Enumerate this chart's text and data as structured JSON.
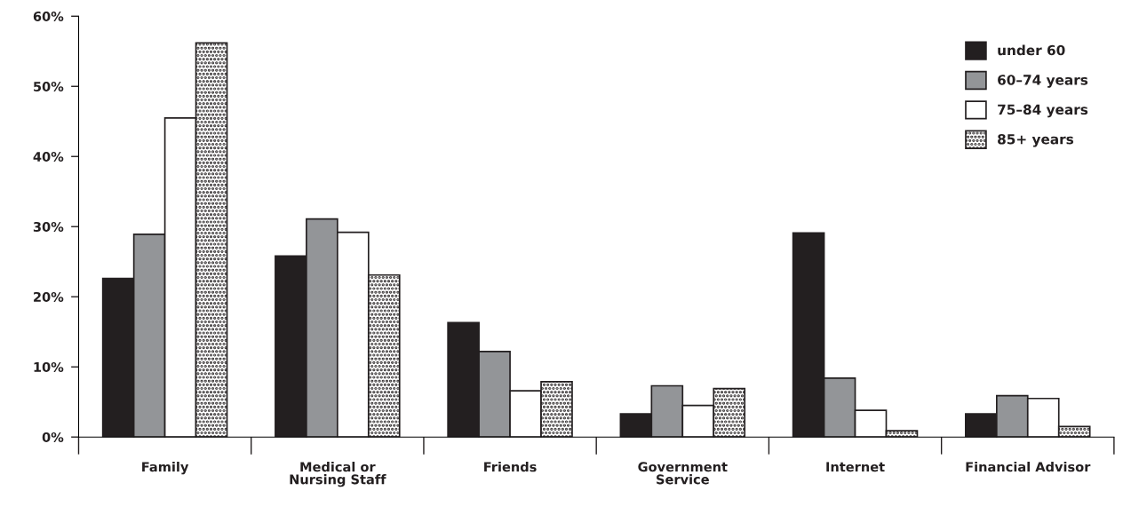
{
  "chart_data": {
    "type": "bar",
    "categories": [
      "Family",
      "Medical or\nNursing Staff",
      "Friends",
      "Government\nService",
      "Internet",
      "Financial Advisor"
    ],
    "series": [
      {
        "name": "under 60",
        "color": "#231f20",
        "values": [
          22.6,
          25.8,
          16.3,
          3.3,
          29.1,
          3.3
        ]
      },
      {
        "name": "60–74 years",
        "color": "#939598",
        "values": [
          28.9,
          31.1,
          12.2,
          7.3,
          8.4,
          5.9
        ]
      },
      {
        "name": "75–84 years",
        "color": "#ffffff",
        "values": [
          45.5,
          29.2,
          6.6,
          4.5,
          3.8,
          5.5
        ]
      },
      {
        "name": "85+ years",
        "color": "#231f20",
        "values": [
          56.2,
          23.1,
          7.9,
          6.9,
          0.9,
          1.5
        ]
      }
    ],
    "ylim": [
      0,
      60
    ],
    "yticks": [
      {
        "value": 0,
        "label": "0%"
      },
      {
        "value": 10,
        "label": "10%"
      },
      {
        "value": 20,
        "label": "20%"
      },
      {
        "value": 30,
        "label": "30%"
      },
      {
        "value": 40,
        "label": "40%"
      },
      {
        "value": 50,
        "label": "50%"
      },
      {
        "value": 60,
        "label": "60%"
      }
    ],
    "grid": false,
    "legend": "top right"
  }
}
